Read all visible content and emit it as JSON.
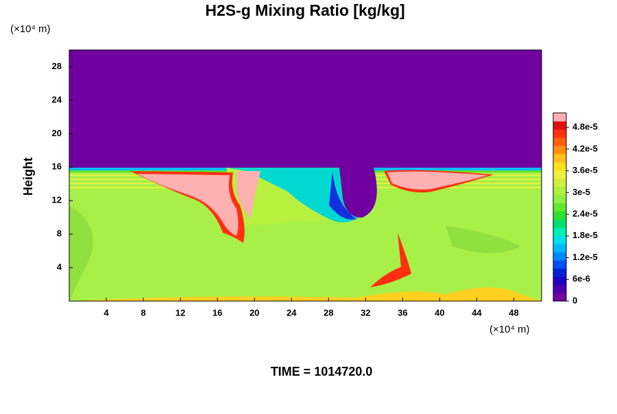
{
  "chart_data": {
    "type": "contour",
    "title": "H2S-g Mixing Ratio [kg/kg]",
    "ylabel": "Height",
    "y_unit_label": "(×10⁴ m)",
    "x_unit_label": "(×10⁴ m)",
    "time_label": "TIME = 1014720.0",
    "xlim": [
      0,
      51
    ],
    "xticks": [
      4,
      8,
      12,
      16,
      20,
      24,
      28,
      32,
      36,
      40,
      44,
      48
    ],
    "ylim": [
      0,
      30
    ],
    "yticks": [
      4,
      8,
      12,
      16,
      20,
      24,
      28
    ],
    "colorbar_lim": [
      0,
      5.2e-05
    ],
    "colorbar_ticks": [
      {
        "value": 0,
        "label": "0"
      },
      {
        "value": 6e-06,
        "label": "6e-6"
      },
      {
        "value": 1.2e-05,
        "label": "1.2e-5"
      },
      {
        "value": 1.8e-05,
        "label": "1.8e-5"
      },
      {
        "value": 2.4e-05,
        "label": "2.4e-5"
      },
      {
        "value": 3e-05,
        "label": "3e-5"
      },
      {
        "value": 3.6e-05,
        "label": "3.6e-5"
      },
      {
        "value": 4.2e-05,
        "label": "4.2e-5"
      },
      {
        "value": 4.8e-05,
        "label": "4.8e-5"
      }
    ],
    "colormap": [
      "#7000a0",
      "#4a00b0",
      "#2000c0",
      "#0020d8",
      "#0050f0",
      "#0088ff",
      "#00b8ff",
      "#00e0e8",
      "#00f0b0",
      "#00e070",
      "#30e030",
      "#60e830",
      "#90f040",
      "#b0f040",
      "#d0f040",
      "#f0f040",
      "#ffe020",
      "#ffc020",
      "#ff9010",
      "#ff6010",
      "#ff3010",
      "#e01010",
      "#ffb0b0"
    ]
  }
}
